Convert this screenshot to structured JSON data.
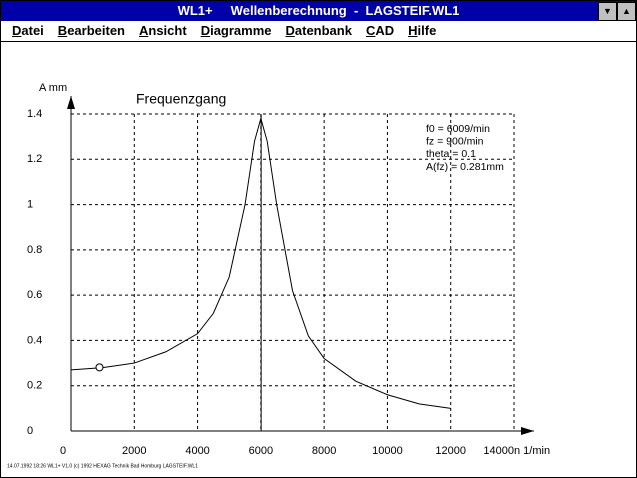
{
  "window": {
    "title": "WL1+     Wellenberechnung  -  LAGSTEIF.WL1"
  },
  "menu": [
    "Datei",
    "Bearbeiten",
    "Ansicht",
    "Diagramme",
    "Datenbank",
    "CAD",
    "Hilfe"
  ],
  "chart_data": {
    "type": "line",
    "title": "Frequenzgang",
    "y_label": "A mm",
    "x_label": "n 1/min",
    "x": [
      0,
      1000,
      2000,
      3000,
      4000,
      4500,
      5000,
      5500,
      5800,
      6000,
      6200,
      6500,
      7000,
      7500,
      8000,
      9000,
      10000,
      11000,
      12000
    ],
    "values": [
      0.27,
      0.28,
      0.3,
      0.35,
      0.43,
      0.52,
      0.68,
      1.0,
      1.28,
      1.38,
      1.28,
      1.0,
      0.62,
      0.42,
      0.32,
      0.22,
      0.16,
      0.12,
      0.1
    ],
    "color": "#000000",
    "xlim": [
      0,
      14000
    ],
    "xticks": [
      0,
      2000,
      4000,
      6000,
      8000,
      10000,
      12000,
      14000
    ],
    "ylim": [
      0,
      1.4
    ],
    "yticks": [
      0,
      0.2,
      0.4,
      0.6,
      0.8,
      1,
      1.2,
      1.4
    ],
    "grid": true,
    "vline_x": 6009,
    "marker": {
      "x": 900,
      "y": 0.281
    },
    "annotations": [
      "f0 = 6009/min",
      "fz = 900/min",
      "theta = 0.1",
      "A(fz) = 0.281mm"
    ]
  },
  "footer": "14.07.1992 18:26   WL1+ V1.0 (c) 1992   HEXAG Technik   Bad Homburg   LAGSTEIF.WL1"
}
